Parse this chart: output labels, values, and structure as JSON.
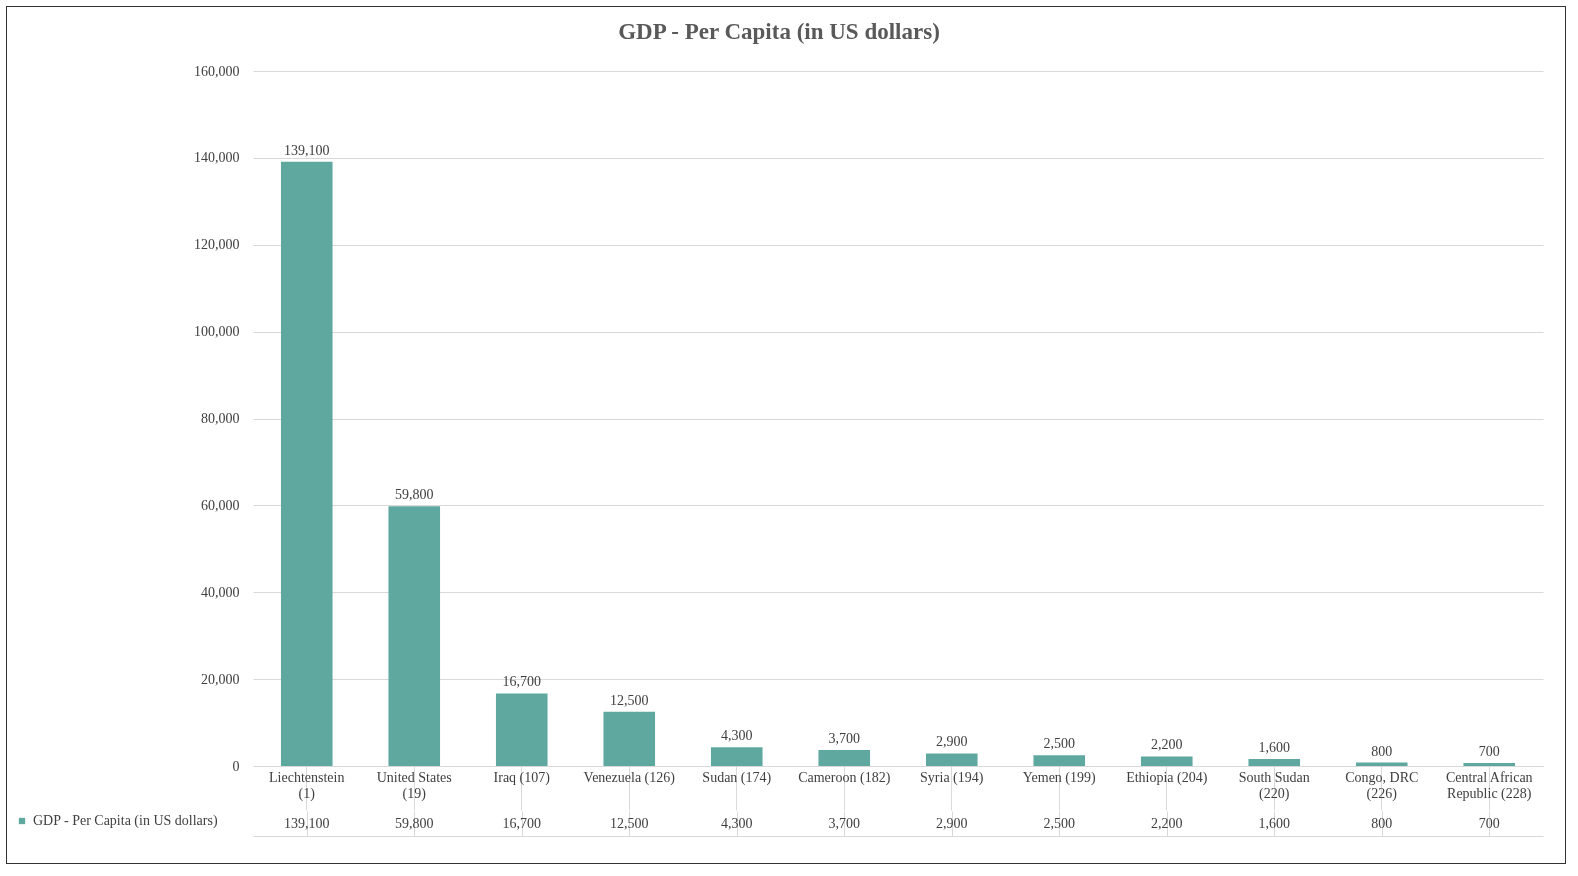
{
  "chart_data": {
    "type": "bar",
    "title": "GDP - Per Capita (in US dollars)",
    "categories": [
      "Liechtenstein (1)",
      "United States (19)",
      "Iraq (107)",
      "Venezuela (126)",
      "Sudan (174)",
      "Cameroon (182)",
      "Syria (194)",
      "Yemen (199)",
      "Ethiopia (204)",
      "South Sudan (220)",
      "Congo, DRC (226)",
      "Central African Republic (228)"
    ],
    "series": [
      {
        "name": "GDP - Per Capita (in US dollars)",
        "color": "#5fa8a0",
        "values": [
          139100,
          59800,
          16700,
          12500,
          4300,
          3700,
          2900,
          2500,
          2200,
          1600,
          800,
          700
        ],
        "value_labels": [
          "139,100",
          "59,800",
          "16,700",
          "12,500",
          "4,300",
          "3,700",
          "2,900",
          "2,500",
          "2,200",
          "1,600",
          "800",
          "700"
        ]
      }
    ],
    "ylim": [
      0,
      160000
    ],
    "yticks": [
      {
        "value": 0,
        "label": "0"
      },
      {
        "value": 20000,
        "label": "20,000"
      },
      {
        "value": 40000,
        "label": "40,000"
      },
      {
        "value": 60000,
        "label": "60,000"
      },
      {
        "value": 80000,
        "label": "80,000"
      },
      {
        "value": 100000,
        "label": "100,000"
      },
      {
        "value": 120000,
        "label": "120,000"
      },
      {
        "value": 140000,
        "label": "140,000"
      },
      {
        "value": 160000,
        "label": "160,000"
      }
    ],
    "grid": "y",
    "legend": "bottom left"
  }
}
